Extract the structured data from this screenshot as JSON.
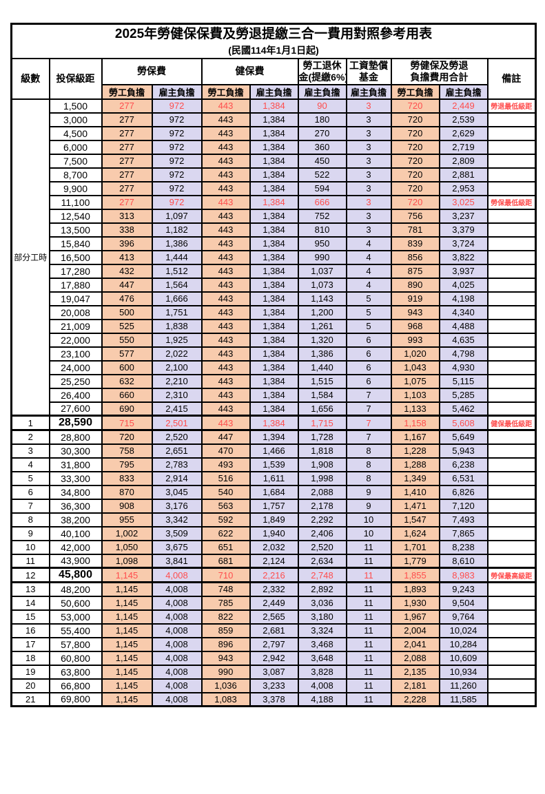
{
  "title": "2025年勞健保保費及勞退提繳三合一費用對照參考用表",
  "subtitle": "(民國114年1月1日起)",
  "columns": {
    "level": "級數",
    "bracket": "投保級距",
    "labor_insurance": "勞保費",
    "health_insurance": "健保費",
    "pension_line1": "勞工退休",
    "pension_line2": "金(提繳6%)",
    "wage_fund_line1": "工資墊償",
    "wage_fund_line2": "基金",
    "total_line1": "勞健保及勞退",
    "total_line2": "負擔費用合計",
    "note": "備註",
    "employee_share": "勞工負擔",
    "employer_share": "雇主負擔"
  },
  "part_time_label": "部分工時",
  "part_time_rowspan": 23,
  "colors": {
    "employee_bg": "#F8CBAD",
    "employer_bg": "#DAD7F0",
    "highlight_text": "#FF4D4D",
    "border": "#000000"
  },
  "rows": [
    {
      "level": "",
      "bracket": "1,500",
      "values": [
        "277",
        "972",
        "443",
        "1,384",
        "90",
        "3",
        "720",
        "2,449"
      ],
      "note": "勞退最低級距",
      "highlight": true,
      "key": false
    },
    {
      "level": "",
      "bracket": "3,000",
      "values": [
        "277",
        "972",
        "443",
        "1,384",
        "180",
        "3",
        "720",
        "2,539"
      ],
      "note": "",
      "highlight": false,
      "key": false
    },
    {
      "level": "",
      "bracket": "4,500",
      "values": [
        "277",
        "972",
        "443",
        "1,384",
        "270",
        "3",
        "720",
        "2,629"
      ],
      "note": "",
      "highlight": false,
      "key": false
    },
    {
      "level": "",
      "bracket": "6,000",
      "values": [
        "277",
        "972",
        "443",
        "1,384",
        "360",
        "3",
        "720",
        "2,719"
      ],
      "note": "",
      "highlight": false,
      "key": false
    },
    {
      "level": "",
      "bracket": "7,500",
      "values": [
        "277",
        "972",
        "443",
        "1,384",
        "450",
        "3",
        "720",
        "2,809"
      ],
      "note": "",
      "highlight": false,
      "key": false
    },
    {
      "level": "",
      "bracket": "8,700",
      "values": [
        "277",
        "972",
        "443",
        "1,384",
        "522",
        "3",
        "720",
        "2,881"
      ],
      "note": "",
      "highlight": false,
      "key": false
    },
    {
      "level": "",
      "bracket": "9,900",
      "values": [
        "277",
        "972",
        "443",
        "1,384",
        "594",
        "3",
        "720",
        "2,953"
      ],
      "note": "",
      "highlight": false,
      "key": false
    },
    {
      "level": "",
      "bracket": "11,100",
      "values": [
        "277",
        "972",
        "443",
        "1,384",
        "666",
        "3",
        "720",
        "3,025"
      ],
      "note": "勞保最低級距",
      "highlight": true,
      "key": false
    },
    {
      "level": "",
      "bracket": "12,540",
      "values": [
        "313",
        "1,097",
        "443",
        "1,384",
        "752",
        "3",
        "756",
        "3,237"
      ],
      "note": "",
      "highlight": false,
      "key": false
    },
    {
      "level": "",
      "bracket": "13,500",
      "values": [
        "338",
        "1,182",
        "443",
        "1,384",
        "810",
        "3",
        "781",
        "3,379"
      ],
      "note": "",
      "highlight": false,
      "key": false
    },
    {
      "level": "",
      "bracket": "15,840",
      "values": [
        "396",
        "1,386",
        "443",
        "1,384",
        "950",
        "4",
        "839",
        "3,724"
      ],
      "note": "",
      "highlight": false,
      "key": false
    },
    {
      "level": "",
      "bracket": "16,500",
      "values": [
        "413",
        "1,444",
        "443",
        "1,384",
        "990",
        "4",
        "856",
        "3,822"
      ],
      "note": "",
      "highlight": false,
      "key": false
    },
    {
      "level": "",
      "bracket": "17,280",
      "values": [
        "432",
        "1,512",
        "443",
        "1,384",
        "1,037",
        "4",
        "875",
        "3,937"
      ],
      "note": "",
      "highlight": false,
      "key": false
    },
    {
      "level": "",
      "bracket": "17,880",
      "values": [
        "447",
        "1,564",
        "443",
        "1,384",
        "1,073",
        "4",
        "890",
        "4,025"
      ],
      "note": "",
      "highlight": false,
      "key": false
    },
    {
      "level": "",
      "bracket": "19,047",
      "values": [
        "476",
        "1,666",
        "443",
        "1,384",
        "1,143",
        "5",
        "919",
        "4,198"
      ],
      "note": "",
      "highlight": false,
      "key": false
    },
    {
      "level": "",
      "bracket": "20,008",
      "values": [
        "500",
        "1,751",
        "443",
        "1,384",
        "1,200",
        "5",
        "943",
        "4,340"
      ],
      "note": "",
      "highlight": false,
      "key": false
    },
    {
      "level": "",
      "bracket": "21,009",
      "values": [
        "525",
        "1,838",
        "443",
        "1,384",
        "1,261",
        "5",
        "968",
        "4,488"
      ],
      "note": "",
      "highlight": false,
      "key": false
    },
    {
      "level": "",
      "bracket": "22,000",
      "values": [
        "550",
        "1,925",
        "443",
        "1,384",
        "1,320",
        "6",
        "993",
        "4,635"
      ],
      "note": "",
      "highlight": false,
      "key": false
    },
    {
      "level": "",
      "bracket": "23,100",
      "values": [
        "577",
        "2,022",
        "443",
        "1,384",
        "1,386",
        "6",
        "1,020",
        "4,798"
      ],
      "note": "",
      "highlight": false,
      "key": false
    },
    {
      "level": "",
      "bracket": "24,000",
      "values": [
        "600",
        "2,100",
        "443",
        "1,384",
        "1,440",
        "6",
        "1,043",
        "4,930"
      ],
      "note": "",
      "highlight": false,
      "key": false
    },
    {
      "level": "",
      "bracket": "25,250",
      "values": [
        "632",
        "2,210",
        "443",
        "1,384",
        "1,515",
        "6",
        "1,075",
        "5,115"
      ],
      "note": "",
      "highlight": false,
      "key": false
    },
    {
      "level": "",
      "bracket": "26,400",
      "values": [
        "660",
        "2,310",
        "443",
        "1,384",
        "1,584",
        "7",
        "1,103",
        "5,285"
      ],
      "note": "",
      "highlight": false,
      "key": false
    },
    {
      "level": "",
      "bracket": "27,600",
      "values": [
        "690",
        "2,415",
        "443",
        "1,384",
        "1,656",
        "7",
        "1,133",
        "5,462"
      ],
      "note": "",
      "highlight": false,
      "key": false
    },
    {
      "level": "1",
      "bracket": "28,590",
      "values": [
        "715",
        "2,501",
        "443",
        "1,384",
        "1,715",
        "7",
        "1,158",
        "5,608"
      ],
      "note": "健保最低級距",
      "highlight": true,
      "key": true
    },
    {
      "level": "2",
      "bracket": "28,800",
      "values": [
        "720",
        "2,520",
        "447",
        "1,394",
        "1,728",
        "7",
        "1,167",
        "5,649"
      ],
      "note": "",
      "highlight": false,
      "key": false
    },
    {
      "level": "3",
      "bracket": "30,300",
      "values": [
        "758",
        "2,651",
        "470",
        "1,466",
        "1,818",
        "8",
        "1,228",
        "5,943"
      ],
      "note": "",
      "highlight": false,
      "key": false
    },
    {
      "level": "4",
      "bracket": "31,800",
      "values": [
        "795",
        "2,783",
        "493",
        "1,539",
        "1,908",
        "8",
        "1,288",
        "6,238"
      ],
      "note": "",
      "highlight": false,
      "key": false
    },
    {
      "level": "5",
      "bracket": "33,300",
      "values": [
        "833",
        "2,914",
        "516",
        "1,611",
        "1,998",
        "8",
        "1,349",
        "6,531"
      ],
      "note": "",
      "highlight": false,
      "key": false
    },
    {
      "level": "6",
      "bracket": "34,800",
      "values": [
        "870",
        "3,045",
        "540",
        "1,684",
        "2,088",
        "9",
        "1,410",
        "6,826"
      ],
      "note": "",
      "highlight": false,
      "key": false
    },
    {
      "level": "7",
      "bracket": "36,300",
      "values": [
        "908",
        "3,176",
        "563",
        "1,757",
        "2,178",
        "9",
        "1,471",
        "7,120"
      ],
      "note": "",
      "highlight": false,
      "key": false
    },
    {
      "level": "8",
      "bracket": "38,200",
      "values": [
        "955",
        "3,342",
        "592",
        "1,849",
        "2,292",
        "10",
        "1,547",
        "7,493"
      ],
      "note": "",
      "highlight": false,
      "key": false
    },
    {
      "level": "9",
      "bracket": "40,100",
      "values": [
        "1,002",
        "3,509",
        "622",
        "1,940",
        "2,406",
        "10",
        "1,624",
        "7,865"
      ],
      "note": "",
      "highlight": false,
      "key": false
    },
    {
      "level": "10",
      "bracket": "42,000",
      "values": [
        "1,050",
        "3,675",
        "651",
        "2,032",
        "2,520",
        "11",
        "1,701",
        "8,238"
      ],
      "note": "",
      "highlight": false,
      "key": false
    },
    {
      "level": "11",
      "bracket": "43,900",
      "values": [
        "1,098",
        "3,841",
        "681",
        "2,124",
        "2,634",
        "11",
        "1,779",
        "8,610"
      ],
      "note": "",
      "highlight": false,
      "key": false
    },
    {
      "level": "12",
      "bracket": "45,800",
      "values": [
        "1,145",
        "4,008",
        "710",
        "2,216",
        "2,748",
        "11",
        "1,855",
        "8,983"
      ],
      "note": "勞保最高級距",
      "highlight": true,
      "key": true
    },
    {
      "level": "13",
      "bracket": "48,200",
      "values": [
        "1,145",
        "4,008",
        "748",
        "2,332",
        "2,892",
        "11",
        "1,893",
        "9,243"
      ],
      "note": "",
      "highlight": false,
      "key": false
    },
    {
      "level": "14",
      "bracket": "50,600",
      "values": [
        "1,145",
        "4,008",
        "785",
        "2,449",
        "3,036",
        "11",
        "1,930",
        "9,504"
      ],
      "note": "",
      "highlight": false,
      "key": false
    },
    {
      "level": "15",
      "bracket": "53,000",
      "values": [
        "1,145",
        "4,008",
        "822",
        "2,565",
        "3,180",
        "11",
        "1,967",
        "9,764"
      ],
      "note": "",
      "highlight": false,
      "key": false
    },
    {
      "level": "16",
      "bracket": "55,400",
      "values": [
        "1,145",
        "4,008",
        "859",
        "2,681",
        "3,324",
        "11",
        "2,004",
        "10,024"
      ],
      "note": "",
      "highlight": false,
      "key": false
    },
    {
      "level": "17",
      "bracket": "57,800",
      "values": [
        "1,145",
        "4,008",
        "896",
        "2,797",
        "3,468",
        "11",
        "2,041",
        "10,284"
      ],
      "note": "",
      "highlight": false,
      "key": false
    },
    {
      "level": "18",
      "bracket": "60,800",
      "values": [
        "1,145",
        "4,008",
        "943",
        "2,942",
        "3,648",
        "11",
        "2,088",
        "10,609"
      ],
      "note": "",
      "highlight": false,
      "key": false
    },
    {
      "level": "19",
      "bracket": "63,800",
      "values": [
        "1,145",
        "4,008",
        "990",
        "3,087",
        "3,828",
        "11",
        "2,135",
        "10,934"
      ],
      "note": "",
      "highlight": false,
      "key": false
    },
    {
      "level": "20",
      "bracket": "66,800",
      "values": [
        "1,145",
        "4,008",
        "1,036",
        "3,233",
        "4,008",
        "11",
        "2,181",
        "11,260"
      ],
      "note": "",
      "highlight": false,
      "key": false
    },
    {
      "level": "21",
      "bracket": "69,800",
      "values": [
        "1,145",
        "4,008",
        "1,083",
        "3,378",
        "4,188",
        "11",
        "2,228",
        "11,585"
      ],
      "note": "",
      "highlight": false,
      "key": false
    }
  ]
}
